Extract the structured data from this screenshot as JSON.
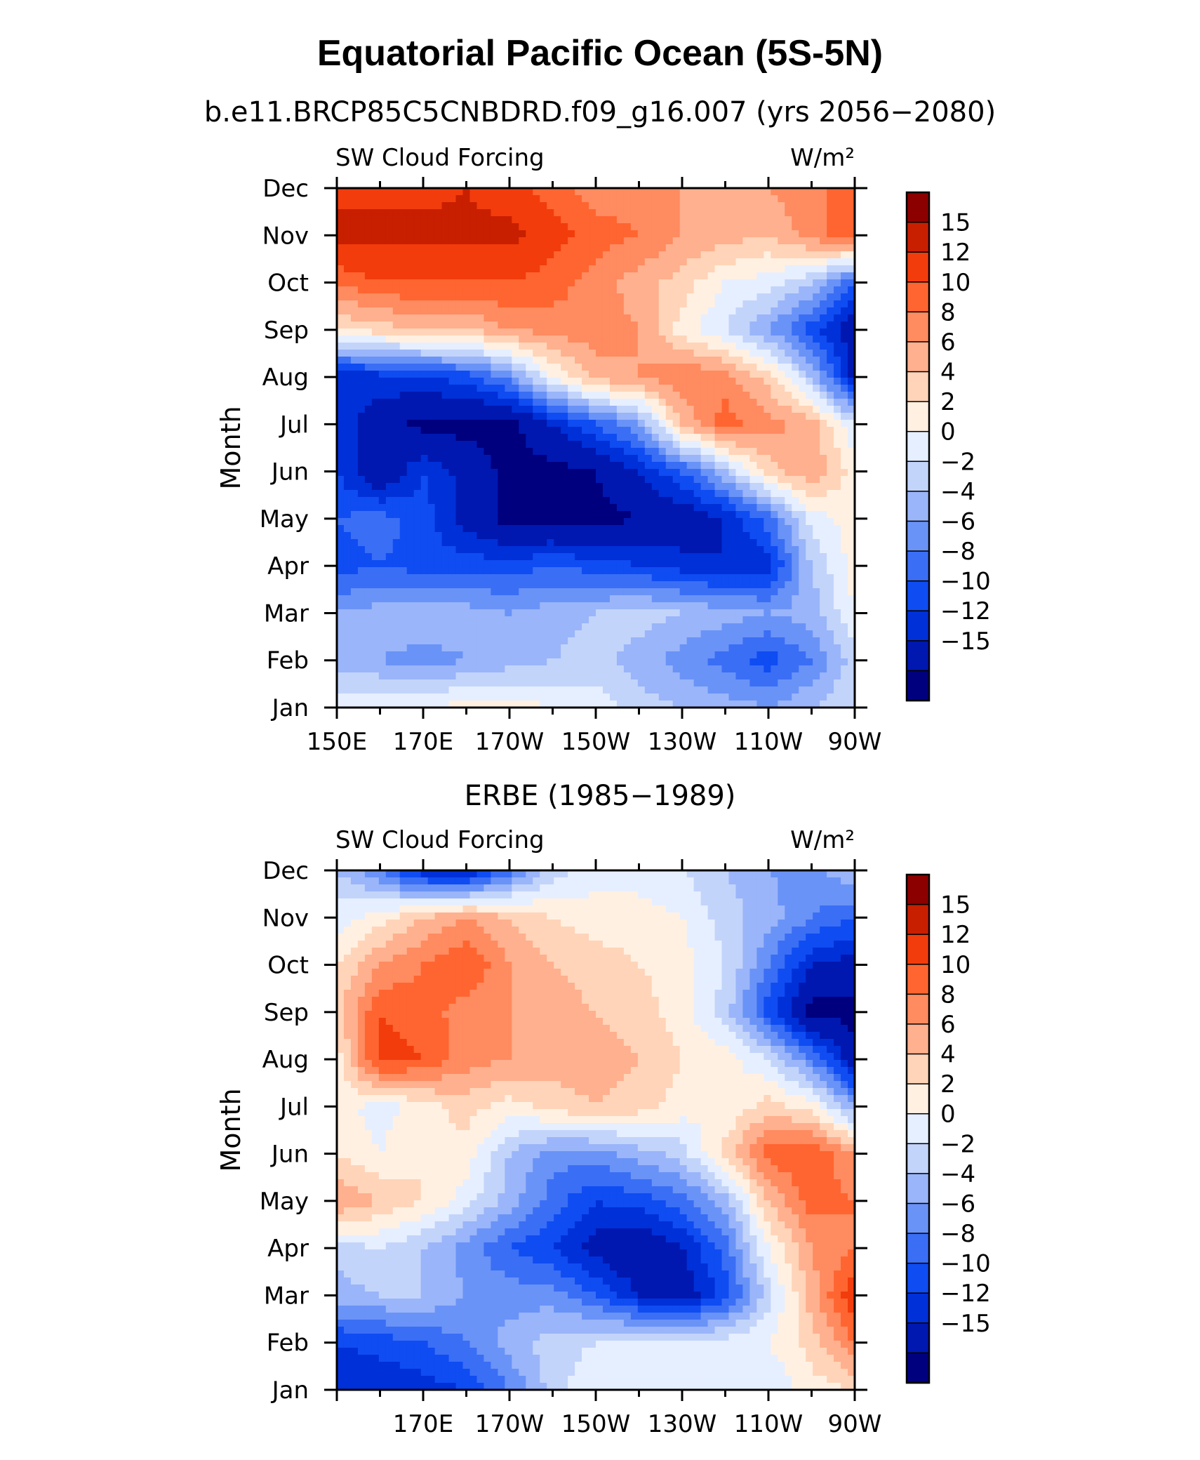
{
  "title": "Equatorial Pacific Ocean (5S-5N)",
  "colors": {
    "levels": [
      "#00007f",
      "#0018b0",
      "#0030d8",
      "#0f4cf2",
      "#3a6ef5",
      "#6a93f7",
      "#9ab5f9",
      "#c3d4fb",
      "#e6efff",
      "#fff0e2",
      "#ffd4b8",
      "#ffb08e",
      "#ff8b60",
      "#ff6530",
      "#f23c0c",
      "#c81f00",
      "#8c0000"
    ]
  },
  "chart_data": [
    {
      "type": "heatmap",
      "subtitle": "b.e11.BRCP85C5CNBDRD.f09_g16.007 (yrs 2056−2080)",
      "left_label": "SW Cloud Forcing",
      "right_label": "W/m²",
      "ylabel": "Month",
      "months": [
        "Jan",
        "Feb",
        "Mar",
        "Apr",
        "May",
        "Jun",
        "Jul",
        "Aug",
        "Sep",
        "Oct",
        "Nov",
        "Dec"
      ],
      "lon_ticks": [
        "150E",
        "170E",
        "170W",
        "150W",
        "130W",
        "110W",
        "90W"
      ],
      "colorbar_labels": [
        "15",
        "12",
        "10",
        "8",
        "6",
        "4",
        "2",
        "0",
        "−2",
        "−4",
        "−6",
        "−8",
        "−10",
        "−12",
        "−15"
      ],
      "xlim": [
        150,
        270
      ],
      "values_lon": [
        150,
        160,
        170,
        180,
        190,
        200,
        210,
        220,
        230,
        240,
        250,
        260,
        270
      ],
      "values": [
        [
          1,
          2,
          2,
          3,
          3,
          2,
          1,
          -1,
          -2,
          -3,
          -4,
          -2,
          0
        ],
        [
          -3,
          -4,
          -5,
          -4,
          -3,
          -2,
          -1,
          -3,
          -5,
          -7,
          -9,
          -6,
          -1
        ],
        [
          -4,
          -3,
          -2,
          -3,
          -4,
          -3,
          -2,
          -1,
          -2,
          -3,
          -4,
          -3,
          2
        ],
        [
          -9,
          -8,
          -9,
          -9,
          -9,
          -8,
          -9,
          -10,
          -11,
          -12,
          -11,
          -2,
          3
        ],
        [
          -8,
          -7,
          -9,
          -13,
          -16,
          -16,
          -16,
          -15,
          -14,
          -12,
          -7,
          1,
          3
        ],
        [
          -10,
          -15,
          -10,
          -13,
          -16,
          -16,
          -15,
          -12,
          -8,
          -2,
          5,
          8,
          3
        ],
        [
          -11,
          -13,
          -16,
          -16,
          -16,
          -12,
          -8,
          -4,
          6,
          11,
          9,
          7,
          0
        ],
        [
          -12,
          -11,
          -10,
          -9,
          -5,
          2,
          7,
          8,
          10,
          9,
          5,
          -2,
          -13
        ],
        [
          4,
          5,
          6,
          6,
          8,
          9,
          9,
          8,
          3,
          0,
          -4,
          -9,
          -14
        ],
        [
          10,
          12,
          12,
          12,
          12,
          11,
          9,
          7,
          5,
          2,
          1,
          -2,
          -8
        ],
        [
          16,
          16,
          16,
          16,
          16,
          13,
          11,
          10,
          8,
          7,
          6,
          9,
          12
        ],
        [
          14,
          14,
          14,
          15,
          13,
          11,
          9,
          9,
          8,
          7,
          8,
          10,
          10
        ]
      ]
    },
    {
      "type": "heatmap",
      "subtitle": "ERBE (1985−1989)",
      "left_label": "SW Cloud Forcing",
      "right_label": "W/m²",
      "ylabel": "Month",
      "months": [
        "Jan",
        "Feb",
        "Mar",
        "Apr",
        "May",
        "Jun",
        "Jul",
        "Aug",
        "Sep",
        "Oct",
        "Nov",
        "Dec"
      ],
      "lon_ticks": [
        "170E",
        "170W",
        "150W",
        "130W",
        "110W",
        "90W"
      ],
      "colorbar_labels": [
        "15",
        "12",
        "10",
        "8",
        "6",
        "4",
        "2",
        "0",
        "−2",
        "−4",
        "−6",
        "−8",
        "−10",
        "−12",
        "−15"
      ],
      "xlim": [
        150,
        270
      ],
      "values_lon": [
        150,
        160,
        170,
        180,
        190,
        200,
        210,
        220,
        230,
        240,
        250,
        260,
        270
      ],
      "values": [
        [
          -12,
          -12,
          -11,
          -10,
          -6,
          -1,
          2,
          2,
          2,
          1,
          0,
          3,
          4
        ],
        [
          -10,
          -9,
          -8,
          -6,
          -3,
          -1,
          0,
          1,
          1,
          1,
          2,
          5,
          10
        ],
        [
          -3,
          -2,
          -2,
          -4,
          -5,
          -5,
          -8,
          -12,
          -14,
          -9,
          -1,
          7,
          14
        ],
        [
          -1,
          0,
          -2,
          -5,
          -8,
          -10,
          -13,
          -15,
          -12,
          -7,
          2,
          8,
          10
        ],
        [
          8,
          6,
          4,
          1,
          -3,
          -7,
          -10,
          -9,
          -7,
          -3,
          6,
          11,
          10
        ],
        [
          4,
          2,
          4,
          3,
          -2,
          -5,
          -5,
          -3,
          -1,
          5,
          11,
          12,
          8
        ],
        [
          3,
          1,
          3,
          5,
          3,
          5,
          6,
          5,
          3,
          2,
          5,
          3,
          -4
        ],
        [
          3,
          13,
          12,
          9,
          8,
          7,
          7,
          6,
          4,
          3,
          0,
          -6,
          -14
        ],
        [
          5,
          12,
          11,
          9,
          8,
          7,
          6,
          5,
          3,
          -1,
          -9,
          -16,
          -16
        ],
        [
          4,
          8,
          10,
          12,
          8,
          6,
          5,
          4,
          3,
          0,
          -6,
          -12,
          -13
        ],
        [
          1,
          3,
          6,
          8,
          6,
          4,
          3,
          3,
          2,
          -1,
          -3,
          -6,
          -8
        ],
        [
          -2,
          -6,
          -12,
          -13,
          -7,
          -1,
          1,
          1,
          0,
          -2,
          -4,
          -5,
          -2
        ]
      ]
    }
  ]
}
